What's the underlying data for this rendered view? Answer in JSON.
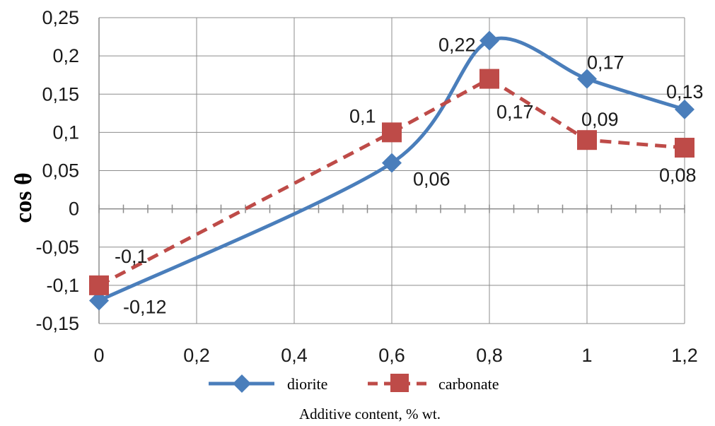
{
  "chart_data": {
    "type": "line",
    "title": "",
    "xlabel": "Additive content, % wt.",
    "ylabel": "cos θ",
    "x_ticks": [
      "0",
      "0,2",
      "0,4",
      "0,6",
      "0,8",
      "1",
      "1,2"
    ],
    "y_ticks": [
      "0,25",
      "0,2",
      "0,15",
      "0,1",
      "0,05",
      "0",
      "-0,05",
      "-0,1",
      "-0,15"
    ],
    "xlim": [
      0,
      1.2
    ],
    "ylim": [
      -0.15,
      0.25
    ],
    "grid": true,
    "legend_position": "bottom",
    "series": [
      {
        "name": "diorite",
        "color": "#4a7ebb",
        "style": "solid-smooth",
        "marker": "diamond",
        "x": [
          0,
          0.6,
          0.8,
          1.0,
          1.2
        ],
        "values": [
          -0.12,
          0.06,
          0.22,
          0.17,
          0.13
        ],
        "labels": [
          "-0,12",
          "0,06",
          "0,22",
          "0,17",
          "0,13"
        ]
      },
      {
        "name": "carbonate",
        "color": "#be4b48",
        "style": "dashed",
        "marker": "square",
        "x": [
          0,
          0.6,
          0.8,
          1.0,
          1.2
        ],
        "values": [
          -0.1,
          0.1,
          0.17,
          0.09,
          0.08
        ],
        "labels": [
          "-0,1",
          "0,1",
          "0,17",
          "0,09",
          "0,08"
        ]
      }
    ]
  }
}
